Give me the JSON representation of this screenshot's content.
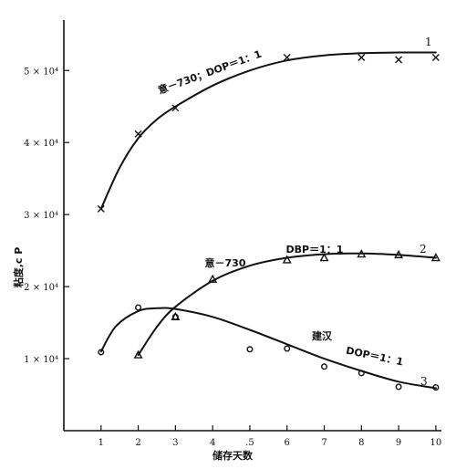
{
  "chart_data": {
    "type": "line",
    "xlabel": "储存天数",
    "ylabel": "粘度,c P",
    "x_ticks": [
      "1",
      "2",
      "3",
      "4",
      ".5",
      "6",
      "7",
      "8",
      "9",
      "10"
    ],
    "y_ticks": [
      {
        "value": 10000,
        "label": "1 × 10⁴"
      },
      {
        "value": 20000,
        "label": "2 × 10⁴"
      },
      {
        "value": 30000,
        "label": "3 × 10⁴"
      },
      {
        "value": 40000,
        "label": "4 × 10⁴"
      },
      {
        "value": 50000,
        "label": "5 × 10⁴"
      }
    ],
    "xlim": [
      0,
      10.15
    ],
    "ylim": [
      0,
      57000
    ],
    "grid": false,
    "series": [
      {
        "name": "意－730；DOP＝1：1",
        "number": "1",
        "marker": "x",
        "points": [
          [
            1,
            30800
          ],
          [
            2,
            41200
          ],
          [
            3,
            44800
          ],
          [
            6,
            51800
          ],
          [
            8,
            51800
          ],
          [
            9,
            51500
          ],
          [
            10,
            51800
          ]
        ],
        "curve": [
          [
            1,
            30800
          ],
          [
            1.5,
            36500
          ],
          [
            2,
            40600
          ],
          [
            2.5,
            43200
          ],
          [
            3,
            45000
          ],
          [
            4,
            47900
          ],
          [
            5,
            50000
          ],
          [
            6,
            51400
          ],
          [
            7,
            52100
          ],
          [
            8,
            52400
          ],
          [
            9,
            52500
          ],
          [
            10,
            52500
          ]
        ]
      },
      {
        "name": "意－730 DBP＝1：1",
        "number": "2",
        "marker": "triangle",
        "points": [
          [
            2,
            10500
          ],
          [
            3,
            15800
          ],
          [
            4,
            21000
          ],
          [
            6,
            23700
          ],
          [
            7,
            24000
          ],
          [
            8,
            24500
          ],
          [
            9,
            24400
          ],
          [
            10,
            24000
          ]
        ],
        "curve": [
          [
            2,
            10500
          ],
          [
            2.5,
            14400
          ],
          [
            3,
            17200
          ],
          [
            4,
            20800
          ],
          [
            5,
            22900
          ],
          [
            6,
            24000
          ],
          [
            7,
            24500
          ],
          [
            8,
            24600
          ],
          [
            9,
            24400
          ],
          [
            10,
            24000
          ]
        ]
      },
      {
        "name": "建汉 DOP＝1：1",
        "number": "3",
        "marker": "circle",
        "points": [
          [
            1,
            10900
          ],
          [
            2,
            17100
          ],
          [
            3,
            15800
          ],
          [
            5,
            11300
          ],
          [
            6,
            11400
          ],
          [
            7,
            8900
          ],
          [
            8,
            8000
          ],
          [
            9,
            6100
          ],
          [
            10,
            6000
          ]
        ],
        "curve": [
          [
            1,
            11000
          ],
          [
            1.4,
            14500
          ],
          [
            2,
            16600
          ],
          [
            2.5,
            17000
          ],
          [
            3,
            16900
          ],
          [
            4,
            15800
          ],
          [
            5,
            14000
          ],
          [
            6,
            12000
          ],
          [
            7,
            10000
          ],
          [
            8,
            8300
          ],
          [
            9,
            6800
          ],
          [
            10,
            5900
          ]
        ]
      }
    ],
    "annotations": [
      "意－730；DOP＝1：1",
      "意－730",
      "DBP＝1：1",
      "建汉",
      "DOP＝1：1"
    ]
  }
}
